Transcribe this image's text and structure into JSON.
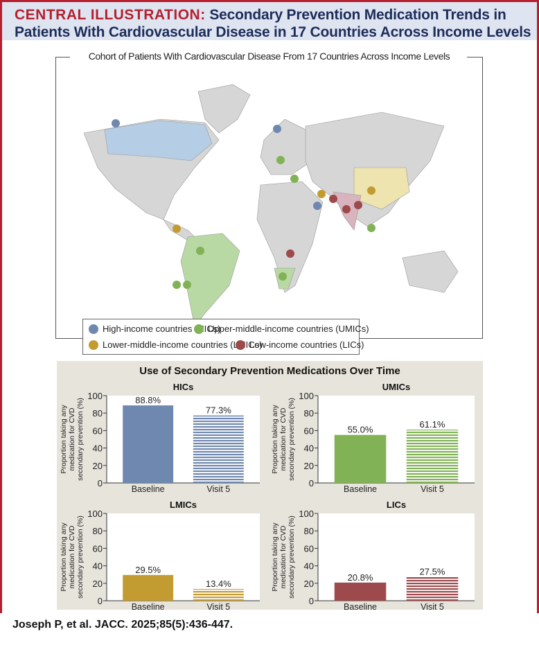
{
  "header": {
    "label": "CENTRAL ILLUSTRATION:",
    "title": "Secondary Prevention Medication Trends in Patients With Cardiovascular Disease in 17 Countries Across Income Levels"
  },
  "map": {
    "title": "Cohort of Patients With Cardiovascular Disease From 17 Countries Across Income Levels",
    "legend": [
      {
        "label": "High-income countries (HICs)",
        "color": "#6f88b0"
      },
      {
        "label": "Upper-middle-income countries (UMICs)",
        "color": "#82b256"
      },
      {
        "label": "Lower-middle-income countries (LMICs)",
        "color": "#c39c31"
      },
      {
        "label": "Low-income countries (LICs)",
        "color": "#9c4a4b"
      }
    ]
  },
  "panel_title": "Use of Secondary Prevention Medications Over Time",
  "chart_data": [
    {
      "type": "bar",
      "title": "HICs",
      "categories": [
        "Baseline",
        "Visit 5"
      ],
      "values": [
        88.8,
        77.3
      ],
      "labels": [
        "88.8%",
        "77.3%"
      ],
      "ylabel": "Proportion taking any medication for CVD secondary prevention (%)",
      "ylim": [
        0,
        100
      ],
      "yticks": [
        "0",
        "20",
        "40",
        "60",
        "80",
        "100"
      ],
      "color": "#6f88b0"
    },
    {
      "type": "bar",
      "title": "UMICs",
      "categories": [
        "Baseline",
        "Visit 5"
      ],
      "values": [
        55.0,
        61.1
      ],
      "labels": [
        "55.0%",
        "61.1%"
      ],
      "ylabel": "Proportion taking any medication for CVD secondary prevention (%)",
      "ylim": [
        0,
        100
      ],
      "yticks": [
        "0",
        "20",
        "40",
        "60",
        "80",
        "100"
      ],
      "color": "#82b256"
    },
    {
      "type": "bar",
      "title": "LMICs",
      "categories": [
        "Baseline",
        "Visit 5"
      ],
      "values": [
        29.5,
        13.4
      ],
      "labels": [
        "29.5%",
        "13.4%"
      ],
      "ylabel": "Proportion taking any medication for CVD secondary prevention (%)",
      "ylim": [
        0,
        100
      ],
      "yticks": [
        "0",
        "20",
        "40",
        "60",
        "80",
        "100"
      ],
      "color": "#c39c31"
    },
    {
      "type": "bar",
      "title": "LICs",
      "categories": [
        "Baseline",
        "Visit 5"
      ],
      "values": [
        20.8,
        27.5
      ],
      "labels": [
        "20.8%",
        "27.5%"
      ],
      "ylabel": "Proportion taking any medication for CVD secondary prevention (%)",
      "ylim": [
        0,
        100
      ],
      "yticks": [
        "0",
        "20",
        "40",
        "60",
        "80",
        "100"
      ],
      "color": "#9c4a4b"
    }
  ],
  "footer": "Joseph P, et al. JACC. 2025;85(5):436-447."
}
